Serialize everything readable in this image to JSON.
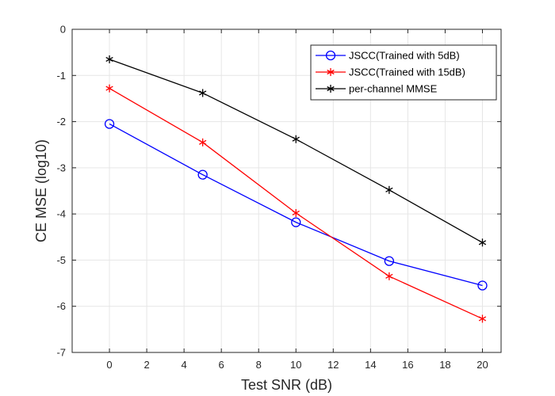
{
  "chart_data": {
    "type": "line",
    "title": "",
    "xlabel": "Test SNR (dB)",
    "ylabel": "CE MSE (log10)",
    "xlim": [
      -2,
      21
    ],
    "ylim": [
      -7,
      0
    ],
    "xticks": [
      0,
      2,
      4,
      6,
      8,
      10,
      12,
      14,
      16,
      18,
      20
    ],
    "yticks": [
      0,
      -1,
      -2,
      -3,
      -4,
      -5,
      -6,
      -7
    ],
    "grid": true,
    "legend_position": "top-right",
    "x": [
      0,
      5,
      10,
      15,
      20
    ],
    "series": [
      {
        "name": "JSCC(Trained with 5dB)",
        "values": [
          -2.05,
          -3.15,
          -4.18,
          -5.02,
          -5.55
        ],
        "color": "#0000ff",
        "marker": "circle"
      },
      {
        "name": "JSCC(Trained with 15dB)",
        "values": [
          -1.28,
          -2.45,
          -3.98,
          -5.35,
          -6.27
        ],
        "color": "#ff0000",
        "marker": "asterisk"
      },
      {
        "name": "per-channel MMSE",
        "values": [
          -0.65,
          -1.38,
          -2.38,
          -3.48,
          -4.62
        ],
        "color": "#000000",
        "marker": "asterisk"
      }
    ]
  }
}
